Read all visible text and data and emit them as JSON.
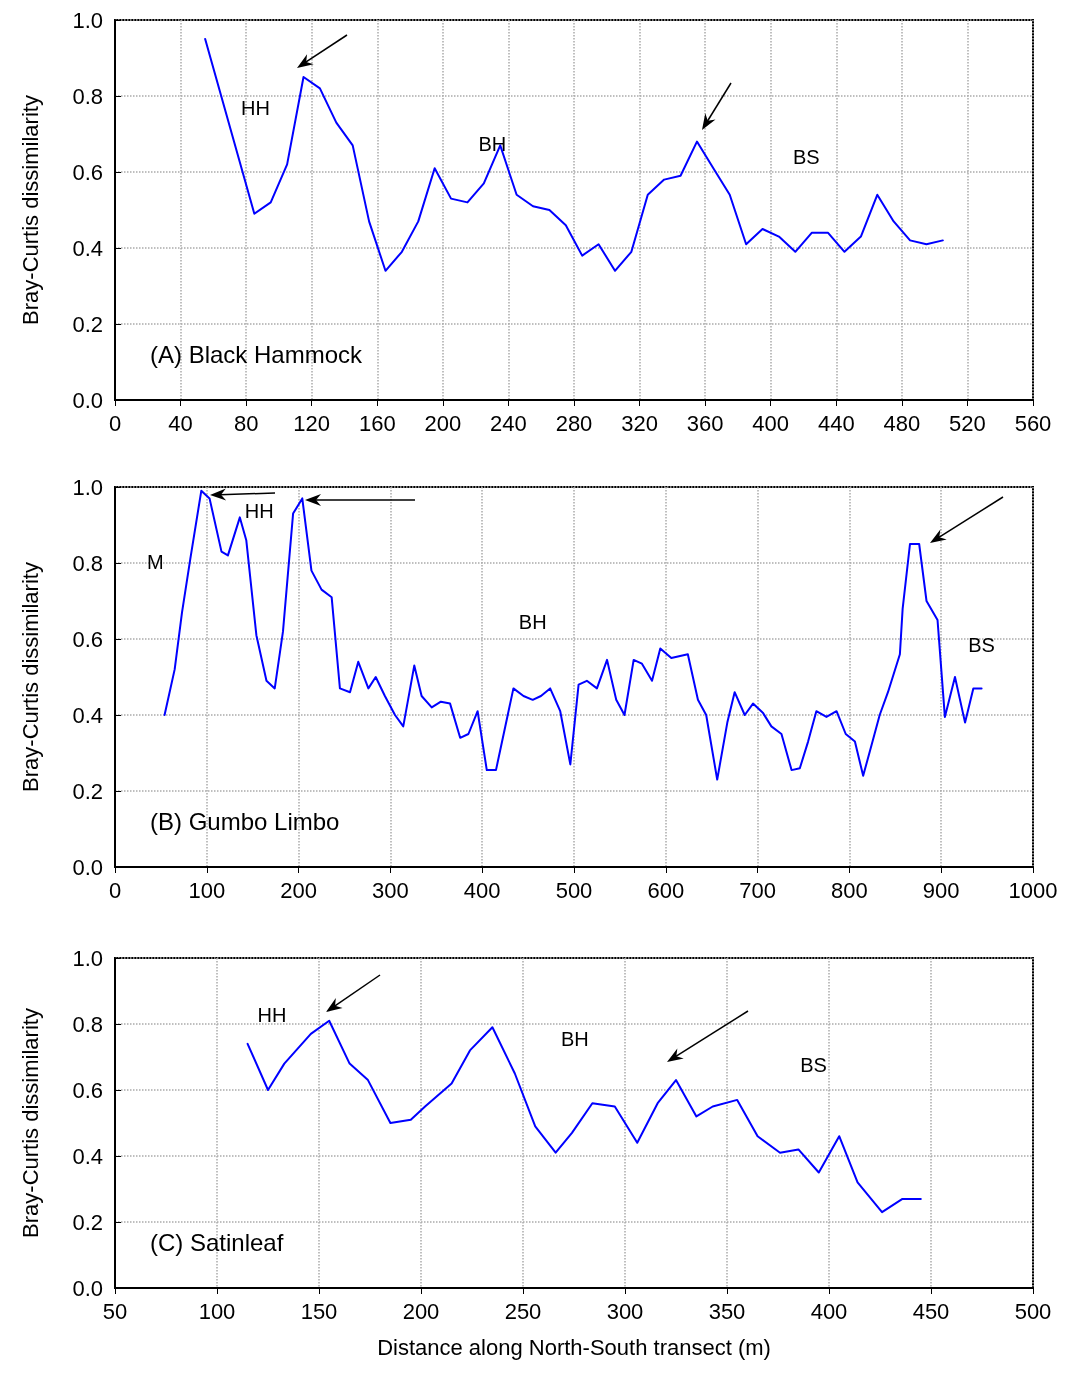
{
  "chart_data": [
    {
      "type": "line",
      "title": "(A) Black Hammock",
      "ylabel": "Bray-Curtis dissimilarity",
      "x": [
        55,
        85,
        95,
        105,
        115,
        125,
        135,
        145,
        155,
        165,
        175,
        185,
        195,
        205,
        215,
        225,
        235,
        245,
        255,
        265,
        275,
        285,
        295,
        305,
        315,
        325,
        335,
        345,
        355,
        365,
        375,
        385,
        395,
        405,
        415,
        425,
        435,
        445,
        455,
        465,
        475,
        485,
        495,
        505
      ],
      "series": [
        {
          "color": "#0000ff",
          "values": [
            0.95,
            0.49,
            0.52,
            0.62,
            0.85,
            0.82,
            0.73,
            0.67,
            0.47,
            0.34,
            0.39,
            0.47,
            0.61,
            0.53,
            0.52,
            0.57,
            0.67,
            0.54,
            0.51,
            0.5,
            0.46,
            0.38,
            0.41,
            0.34,
            0.39,
            0.54,
            0.58,
            0.59,
            0.68,
            0.61,
            0.54,
            0.41,
            0.45,
            0.43,
            0.39,
            0.44,
            0.44,
            0.39,
            0.43,
            0.54,
            0.47,
            0.42,
            0.41,
            0.42
          ]
        }
      ],
      "xlim": [
        0,
        560
      ],
      "xticks": [
        0,
        40,
        80,
        120,
        160,
        200,
        240,
        280,
        320,
        360,
        400,
        440,
        480,
        520,
        560
      ],
      "ylim": [
        0,
        1
      ],
      "yticks": [
        {
          "value": 0,
          "label": "0.0"
        },
        {
          "value": 0.2,
          "label": "0.2"
        },
        {
          "value": 0.4,
          "label": "0.4"
        },
        {
          "value": 0.6,
          "label": "0.6"
        },
        {
          "value": 0.8,
          "label": "0.8"
        },
        {
          "value": 1,
          "label": "1.0"
        }
      ],
      "annotations": [
        "HH",
        "BH",
        "BS"
      ],
      "grid": true,
      "marker": "none",
      "line_style": "solid"
    },
    {
      "type": "line",
      "title": "(B) Gumbo Limbo",
      "ylabel": "Bray-Curtis dissimilarity",
      "x": [
        54,
        65,
        73,
        82,
        94,
        103,
        116,
        123,
        136,
        143,
        154,
        165,
        174,
        183,
        194,
        204,
        214,
        225,
        236,
        245,
        256,
        265,
        276,
        284,
        294,
        305,
        314,
        326,
        334,
        345,
        355,
        365,
        376,
        385,
        395,
        405,
        415,
        434,
        445,
        455,
        464,
        474,
        485,
        496,
        505,
        514,
        525,
        536,
        546,
        555,
        565,
        574,
        585,
        594,
        606,
        624,
        635,
        644,
        656,
        667,
        675,
        686,
        695,
        706,
        715,
        726,
        737,
        746,
        755,
        764,
        775,
        786,
        796,
        806,
        815,
        824,
        833,
        842,
        855,
        858,
        866,
        876,
        884,
        896,
        904,
        915,
        926,
        935,
        944
      ],
      "series": [
        {
          "color": "#0000ff",
          "values": [
            0.4,
            0.52,
            0.67,
            0.81,
            0.99,
            0.97,
            0.83,
            0.82,
            0.92,
            0.86,
            0.61,
            0.49,
            0.47,
            0.62,
            0.93,
            0.97,
            0.78,
            0.73,
            0.71,
            0.47,
            0.46,
            0.54,
            0.47,
            0.5,
            0.45,
            0.4,
            0.37,
            0.53,
            0.45,
            0.42,
            0.435,
            0.43,
            0.34,
            0.35,
            0.41,
            0.255,
            0.255,
            0.47,
            0.45,
            0.44,
            0.45,
            0.47,
            0.41,
            0.27,
            0.48,
            0.49,
            0.47,
            0.545,
            0.44,
            0.4,
            0.545,
            0.535,
            0.49,
            0.575,
            0.55,
            0.56,
            0.44,
            0.4,
            0.23,
            0.38,
            0.46,
            0.4,
            0.43,
            0.405,
            0.37,
            0.35,
            0.255,
            0.26,
            0.33,
            0.41,
            0.395,
            0.41,
            0.35,
            0.33,
            0.24,
            0.32,
            0.4,
            0.46,
            0.56,
            0.68,
            0.85,
            0.85,
            0.7,
            0.65,
            0.395,
            0.5,
            0.38,
            0.47,
            0.47
          ]
        }
      ],
      "xlim": [
        0,
        1000
      ],
      "xticks": [
        0,
        100,
        200,
        300,
        400,
        500,
        600,
        700,
        800,
        900,
        1000
      ],
      "ylim": [
        0,
        1
      ],
      "yticks": [
        {
          "value": 0,
          "label": "0.0"
        },
        {
          "value": 0.2,
          "label": "0.2"
        },
        {
          "value": 0.4,
          "label": "0.4"
        },
        {
          "value": 0.6,
          "label": "0.6"
        },
        {
          "value": 0.8,
          "label": "0.8"
        },
        {
          "value": 1,
          "label": "1.0"
        }
      ],
      "annotations": [
        "M",
        "HH",
        "BH",
        "BS"
      ],
      "grid": true,
      "marker": "none",
      "line_style": "solid"
    },
    {
      "type": "line",
      "title": "(C) Satinleaf",
      "xlabel": "Distance along North-South transect (m)",
      "ylabel": "Bray-Curtis dissimilarity",
      "x": [
        115,
        125,
        133,
        146,
        155,
        165,
        174,
        185,
        195,
        202,
        215,
        224,
        235,
        246,
        256,
        266,
        274,
        284,
        295,
        306,
        316,
        325,
        335,
        343,
        355,
        365,
        376,
        385,
        395,
        405,
        414,
        426,
        436,
        445
      ],
      "series": [
        {
          "color": "#0000ff",
          "values": [
            0.74,
            0.6,
            0.68,
            0.77,
            0.81,
            0.68,
            0.63,
            0.5,
            0.51,
            0.55,
            0.62,
            0.72,
            0.79,
            0.65,
            0.49,
            0.41,
            0.47,
            0.56,
            0.55,
            0.44,
            0.56,
            0.63,
            0.52,
            0.55,
            0.57,
            0.46,
            0.41,
            0.42,
            0.35,
            0.46,
            0.32,
            0.23,
            0.27,
            0.27
          ]
        }
      ],
      "xlim": [
        50,
        500
      ],
      "xticks": [
        50,
        100,
        150,
        200,
        250,
        300,
        350,
        400,
        450,
        500
      ],
      "ylim": [
        0,
        1
      ],
      "yticks": [
        {
          "value": 0,
          "label": "0.0"
        },
        {
          "value": 0.2,
          "label": "0.2"
        },
        {
          "value": 0.4,
          "label": "0.4"
        },
        {
          "value": 0.6,
          "label": "0.6"
        },
        {
          "value": 0.8,
          "label": "0.8"
        },
        {
          "value": 1,
          "label": "1.0"
        }
      ],
      "annotations": [
        "HH",
        "BH",
        "BS"
      ],
      "grid": true,
      "marker": "none",
      "line_style": "solid"
    }
  ]
}
